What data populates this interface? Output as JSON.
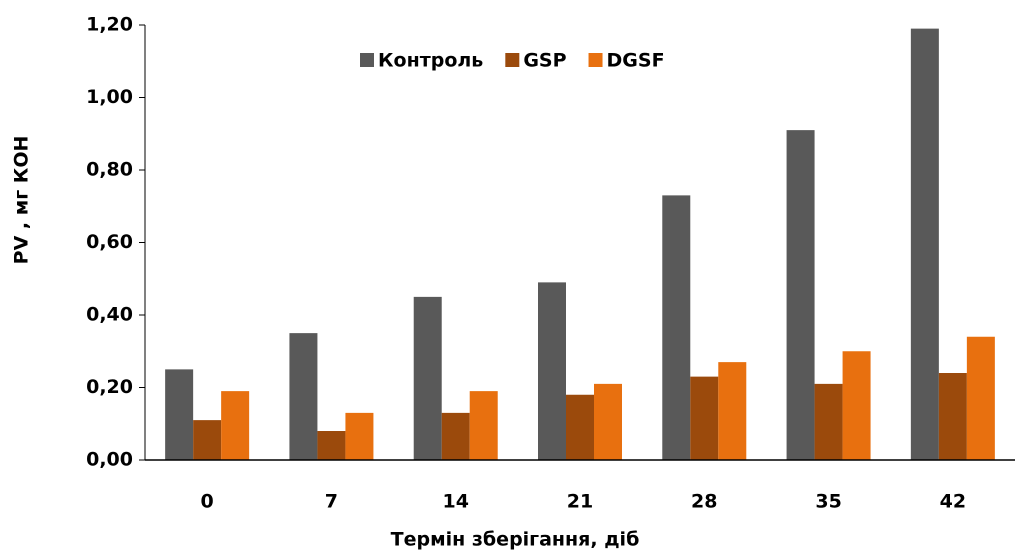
{
  "chart_data": {
    "type": "bar",
    "categories": [
      "0",
      "7",
      "14",
      "21",
      "28",
      "35",
      "42"
    ],
    "series": [
      {
        "name": "Контроль",
        "color": "#595959",
        "values": [
          0.25,
          0.35,
          0.45,
          0.49,
          0.73,
          0.91,
          1.19
        ]
      },
      {
        "name": "GSP",
        "color": "#9b4a0c",
        "values": [
          0.11,
          0.08,
          0.13,
          0.18,
          0.23,
          0.21,
          0.24
        ]
      },
      {
        "name": "DGSF",
        "color": "#e8700f",
        "values": [
          0.19,
          0.13,
          0.19,
          0.21,
          0.27,
          0.3,
          0.34
        ]
      }
    ],
    "x_label": "Термін зберігання, діб",
    "y_label": "PV , мг КОН",
    "ylim": [
      0,
      1.2
    ],
    "yticks": [
      {
        "value": 0,
        "label": "0,00"
      },
      {
        "value": 0.2,
        "label": "0,20"
      },
      {
        "value": 0.4,
        "label": "0,40"
      },
      {
        "value": 0.6,
        "label": "0,60"
      },
      {
        "value": 0.8,
        "label": "0,80"
      },
      {
        "value": 1.0,
        "label": "1,00"
      },
      {
        "value": 1.2,
        "label": "1,20"
      }
    ],
    "grid": false,
    "legend": "top"
  }
}
